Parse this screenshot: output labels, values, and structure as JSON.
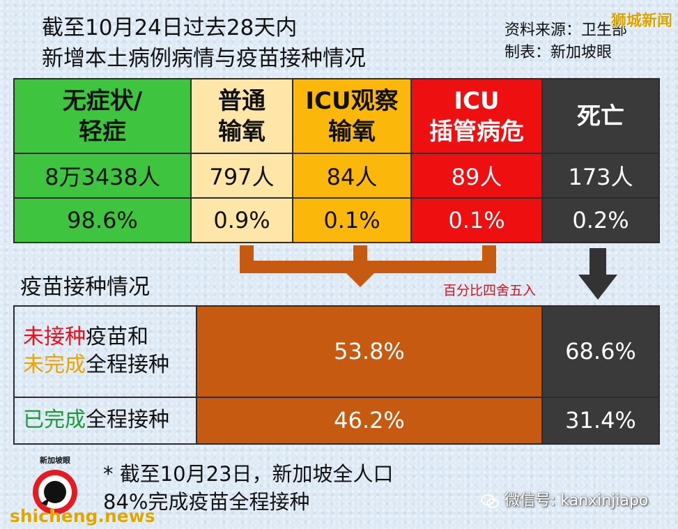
{
  "title": {
    "line1": "截至10月24日过去28天内",
    "line2": "新增本土病例病情与疫苗接种情况"
  },
  "meta": {
    "source": "资料来源：卫生部",
    "made_by": "制表：新加坡眼"
  },
  "watermark_top": "狮城新闻",
  "severity": {
    "headers": [
      {
        "line1": "无症状/",
        "line2": "轻症",
        "color": "#3ec43e"
      },
      {
        "line1": "普通",
        "line2": "输氧",
        "color": "#fde6a8"
      },
      {
        "line1": "ICU观察",
        "line2": "输氧",
        "color": "#fbb80a"
      },
      {
        "line1": "ICU",
        "line2": "插管病危",
        "color": "#ee1010"
      },
      {
        "line1": "死亡",
        "line2": "",
        "color": "#3a3a3a"
      }
    ],
    "counts": [
      "8万3438人",
      "797人",
      "84人",
      "89人",
      "173人"
    ],
    "percents": [
      "98.6%",
      "0.9%",
      "0.1%",
      "0.1%",
      "0.2%"
    ]
  },
  "vaccination": {
    "section_title": "疫苗接种情况",
    "rounding_note": "百分比四舍五入",
    "rows": [
      {
        "label_parts": [
          "未接种",
          "疫苗和",
          "未完成",
          "全程接种"
        ],
        "severe": "53.8%",
        "death": "68.6%"
      },
      {
        "label_parts": [
          "已完成",
          "全程接种"
        ],
        "severe": "46.2%",
        "death": "31.4%"
      }
    ]
  },
  "footer": {
    "logo_text": "新加坡眼",
    "note_line1": "* 截至10月23日，新加坡全人口",
    "note_line2": "84%完成疫苗全程接种",
    "watermark": "shicheng.news",
    "wechat": "微信号: kanxinjiapo"
  },
  "colors": {
    "orange": "#c65a10",
    "dark": "#3a3a3a",
    "red_text": "#e8121c",
    "amber_text": "#eba400",
    "green_text": "#1a9a3a"
  }
}
